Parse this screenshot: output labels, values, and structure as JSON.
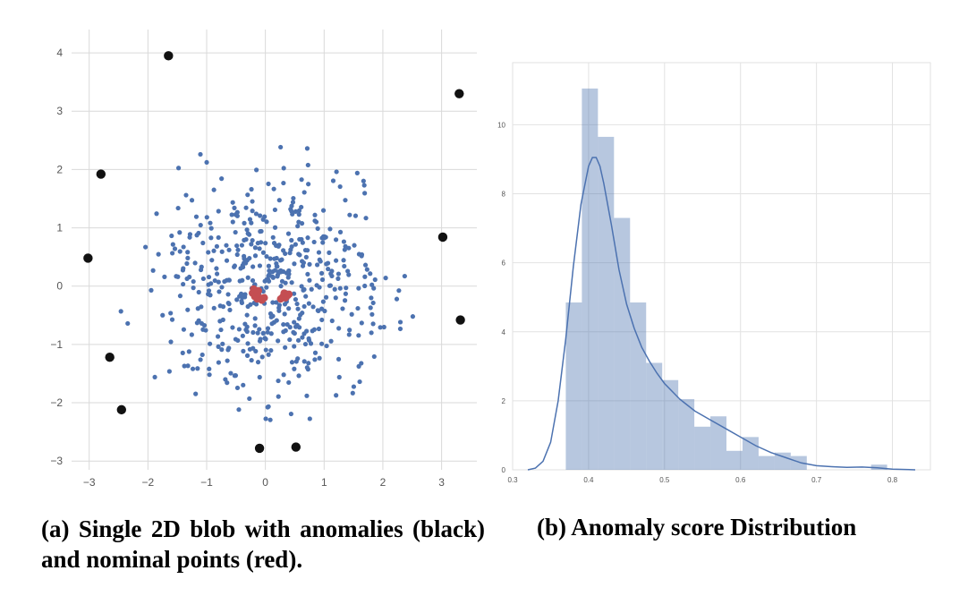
{
  "chart_data": [
    {
      "type": "scatter",
      "title": "",
      "xlabel": "",
      "ylabel": "",
      "xlim": [
        -3.3,
        3.6
      ],
      "ylim": [
        -3.15,
        4.4
      ],
      "xticks": [
        -3,
        -2,
        -1,
        0,
        1,
        2,
        3
      ],
      "yticks": [
        -3,
        -2,
        -1,
        0,
        1,
        2,
        3,
        4
      ],
      "xtick_labels": [
        "−3",
        "−2",
        "−1",
        "0",
        "1",
        "2",
        "3"
      ],
      "ytick_labels": [
        "−3",
        "−2",
        "−1",
        "0",
        "1",
        "2",
        "3",
        "4"
      ],
      "grid": true,
      "legend": "none",
      "colors": {
        "blob": "#4c72b0",
        "anomaly": "#111111",
        "nominal": "#c44e52",
        "grid": "#d9d9d9"
      },
      "series": [
        {
          "points": [
            [
              -1.65,
              3.95
            ],
            [
              3.3,
              3.3
            ],
            [
              -2.8,
              1.92
            ],
            [
              3.02,
              0.84
            ],
            [
              -3.02,
              0.48
            ],
            [
              3.32,
              -0.58
            ],
            [
              -2.65,
              -1.22
            ],
            [
              -2.45,
              -2.12
            ],
            [
              -0.1,
              -2.78
            ],
            [
              0.52,
              -2.76
            ]
          ]
        },
        {
          "points": [
            [
              -0.22,
              -0.12
            ],
            [
              -0.18,
              -0.18
            ],
            [
              -0.14,
              -0.22
            ],
            [
              -0.1,
              -0.2
            ],
            [
              -0.06,
              -0.24
            ],
            [
              -0.02,
              -0.2
            ],
            [
              -0.2,
              -0.05
            ],
            [
              -0.12,
              -0.08
            ],
            [
              0.3,
              -0.18
            ],
            [
              0.34,
              -0.2
            ],
            [
              0.38,
              -0.16
            ],
            [
              0.26,
              -0.22
            ],
            [
              0.4,
              -0.14
            ],
            [
              0.32,
              -0.12
            ]
          ]
        }
      ],
      "blob": {
        "center": [
          0.05,
          0.0
        ],
        "spread": 0.95,
        "count": 560,
        "seed": 7
      }
    },
    {
      "type": "bar",
      "title": "",
      "xlabel": "",
      "ylabel": "",
      "xlim": [
        0.3,
        0.85
      ],
      "ylim": [
        0,
        11.8
      ],
      "xticks": [
        0.3,
        0.4,
        0.5,
        0.6,
        0.7,
        0.8
      ],
      "yticks": [
        0,
        2,
        4,
        6,
        8,
        10
      ],
      "xtick_labels": [
        "0.3",
        "0.4",
        "0.5",
        "0.6",
        "0.7",
        "0.8"
      ],
      "ytick_labels": [
        "0",
        "2",
        "4",
        "6",
        "8",
        "10"
      ],
      "grid": true,
      "bin_start": 0.37,
      "bin_width": 0.02115,
      "values": [
        4.85,
        11.05,
        9.65,
        7.3,
        4.85,
        3.1,
        2.6,
        2.05,
        1.25,
        1.55,
        0.55,
        0.95,
        0.4,
        0.5,
        0.4,
        0.0,
        0.0,
        0.0,
        0.0,
        0.15,
        0.0
      ],
      "kde": {
        "x": [
          0.32,
          0.33,
          0.34,
          0.35,
          0.36,
          0.37,
          0.38,
          0.39,
          0.4,
          0.405,
          0.41,
          0.415,
          0.42,
          0.43,
          0.44,
          0.45,
          0.46,
          0.47,
          0.48,
          0.49,
          0.5,
          0.52,
          0.54,
          0.56,
          0.58,
          0.6,
          0.62,
          0.64,
          0.66,
          0.68,
          0.7,
          0.72,
          0.74,
          0.76,
          0.78,
          0.8,
          0.83
        ],
        "y": [
          0.0,
          0.05,
          0.25,
          0.8,
          2.0,
          3.8,
          5.9,
          7.7,
          8.8,
          9.05,
          9.05,
          8.8,
          8.3,
          7.1,
          5.8,
          4.8,
          4.1,
          3.55,
          3.15,
          2.8,
          2.5,
          2.05,
          1.7,
          1.45,
          1.2,
          0.95,
          0.7,
          0.5,
          0.35,
          0.2,
          0.12,
          0.09,
          0.07,
          0.08,
          0.06,
          0.02,
          0.0
        ]
      },
      "colors": {
        "bar": "#4c72b0",
        "bar_opacity": 0.4,
        "kde": "#4c72b0",
        "grid": "#e2e2e2"
      }
    }
  ],
  "captions": {
    "a": "(a) Single 2D blob with anomalies (black) and nominal points (red).",
    "b": "(b) Anomaly score Distribution"
  }
}
